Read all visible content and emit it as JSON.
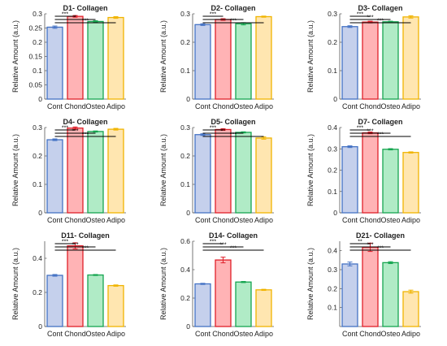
{
  "colors": {
    "stroke": [
      "#4472C4",
      "#E0202A",
      "#16A550",
      "#F0B400"
    ],
    "fill": [
      "#C5D0EC",
      "#FFB3B5",
      "#B0EBC6",
      "#FFE6B0"
    ],
    "axis": "#555555",
    "text": "#222222"
  },
  "chart_data": [
    {
      "type": "bar",
      "title": "D1- Collagen",
      "ylabel": "Relative Amount (a.u.)",
      "categories": [
        "Cont",
        "Chond",
        "Osteo",
        "Adipo"
      ],
      "values": [
        0.253,
        0.291,
        0.273,
        0.287
      ],
      "errors": [
        0.004,
        0.003,
        0.003,
        0.003
      ],
      "ylim": [
        0,
        0.3
      ],
      "yticks": [
        "0",
        "0.05",
        "0.1",
        "0.15",
        "0.2",
        "0.25",
        "0.3"
      ],
      "significance": [
        {
          "from": 0,
          "to": 1,
          "label": "***"
        },
        {
          "from": 0,
          "to": 2,
          "label": "*"
        },
        {
          "from": 0,
          "to": 3,
          "label": "***"
        }
      ]
    },
    {
      "type": "bar",
      "title": "D2- Collagen",
      "ylabel": "Relative Amount (a.u.)",
      "categories": [
        "Cont",
        "Chond",
        "Osteo",
        "Adipo"
      ],
      "values": [
        0.262,
        0.28,
        0.265,
        0.29
      ],
      "errors": [
        0.003,
        0.003,
        0.004,
        0.002
      ],
      "ylim": [
        0,
        0.3
      ],
      "yticks": [
        "0",
        "0.1",
        "0.2",
        "0.3"
      ],
      "significance": [
        {
          "from": 0,
          "to": 1,
          "label": "***"
        },
        {
          "from": 0,
          "to": 2,
          "label": ""
        },
        {
          "from": 0,
          "to": 3,
          "label": "***"
        }
      ]
    },
    {
      "type": "bar",
      "title": "D3- Collagen",
      "ylabel": "Relative Amount (a.u.)",
      "categories": [
        "Cont",
        "Chond",
        "Osteo",
        "Adipo"
      ],
      "values": [
        0.255,
        0.271,
        0.272,
        0.289
      ],
      "errors": [
        0.003,
        0.003,
        0.002,
        0.004
      ],
      "ylim": [
        0,
        0.3
      ],
      "yticks": [
        "0",
        "0.1",
        "0.2",
        "0.3"
      ],
      "significance": [
        {
          "from": 0,
          "to": 1,
          "label": "***"
        },
        {
          "from": 0,
          "to": 2,
          "label": "***"
        },
        {
          "from": 0,
          "to": 3,
          "label": "***"
        }
      ]
    },
    {
      "type": "bar",
      "title": "D4- Collagen",
      "ylabel": "Relative Amount (a.u.)",
      "categories": [
        "Cont",
        "Chond",
        "Osteo",
        "Adipo"
      ],
      "values": [
        0.257,
        0.298,
        0.286,
        0.294
      ],
      "errors": [
        0.003,
        0.004,
        0.002,
        0.003
      ],
      "ylim": [
        0,
        0.3
      ],
      "yticks": [
        "0",
        "0.1",
        "0.2",
        "0.3"
      ],
      "significance": [
        {
          "from": 0,
          "to": 1,
          "label": "***"
        },
        {
          "from": 0,
          "to": 2,
          "label": "***"
        },
        {
          "from": 0,
          "to": 3,
          "label": "***"
        }
      ]
    },
    {
      "type": "bar",
      "title": "D5- Collagen",
      "ylabel": "Relative Amount (a.u.)",
      "categories": [
        "Cont",
        "Chond",
        "Osteo",
        "Adipo"
      ],
      "values": [
        0.275,
        0.293,
        0.283,
        0.263
      ],
      "errors": [
        0.003,
        0.003,
        0.002,
        0.004
      ],
      "ylim": [
        0,
        0.3
      ],
      "yticks": [
        "0",
        "0.1",
        "0.2",
        "0.3"
      ],
      "significance": [
        {
          "from": 0,
          "to": 1,
          "label": "***"
        },
        {
          "from": 0,
          "to": 2,
          "label": "**"
        },
        {
          "from": 0,
          "to": 3,
          "label": "***"
        }
      ]
    },
    {
      "type": "bar",
      "title": "D7- Collagen",
      "ylabel": "Relative Amount (a.u.)",
      "categories": [
        "Cont",
        "Chond",
        "Osteo",
        "Adipo"
      ],
      "values": [
        0.31,
        0.375,
        0.298,
        0.283
      ],
      "errors": [
        0.004,
        0.004,
        0.003,
        0.003
      ],
      "ylim": [
        0,
        0.4
      ],
      "yticks": [
        "0",
        "0.1",
        "0.2",
        "0.3",
        "0.4"
      ],
      "significance": [
        {
          "from": 0,
          "to": 1,
          "label": "***"
        },
        {
          "from": 0,
          "to": 2,
          "label": "***"
        },
        {
          "from": 0,
          "to": 3,
          "label": "***"
        }
      ]
    },
    {
      "type": "bar",
      "title": "D11- Collagen",
      "ylabel": "Relative Amount (a.u.)",
      "categories": [
        "Cont",
        "Chond",
        "Osteo",
        "Adipo"
      ],
      "values": [
        0.3,
        0.473,
        0.302,
        0.24
      ],
      "errors": [
        0.005,
        0.018,
        0.003,
        0.004
      ],
      "ylim": [
        0,
        0.5
      ],
      "yticks": [
        "0",
        "0.2",
        "0.4"
      ],
      "significance": [
        {
          "from": 0,
          "to": 1,
          "label": "***"
        },
        {
          "from": 0,
          "to": 2,
          "label": "***"
        },
        {
          "from": 0,
          "to": 3,
          "label": "***"
        }
      ]
    },
    {
      "type": "bar",
      "title": "D14- Collagen",
      "ylabel": "Relative Amount (a.u.)",
      "categories": [
        "Cont",
        "Chond",
        "Osteo",
        "Adipo"
      ],
      "values": [
        0.3,
        0.468,
        0.313,
        0.258
      ],
      "errors": [
        0.004,
        0.02,
        0.004,
        0.004
      ],
      "ylim": [
        0,
        0.6
      ],
      "yticks": [
        "0",
        "0.2",
        "0.4",
        "0.6"
      ],
      "significance": [
        {
          "from": 0,
          "to": 1,
          "label": "***"
        },
        {
          "from": 0,
          "to": 2,
          "label": "***"
        },
        {
          "from": 0,
          "to": 3,
          "label": "***"
        }
      ]
    },
    {
      "type": "bar",
      "title": "D21- Collagen",
      "ylabel": "Relative Amount (a.u.)",
      "categories": [
        "Cont",
        "Chond",
        "Osteo",
        "Adipo"
      ],
      "values": [
        0.33,
        0.418,
        0.337,
        0.184
      ],
      "errors": [
        0.01,
        0.022,
        0.005,
        0.008
      ],
      "ylim": [
        0,
        0.45
      ],
      "yticks": [
        "0.1",
        "0.2",
        "0.3",
        "0.4"
      ],
      "significance": [
        {
          "from": 0,
          "to": 1,
          "label": "**"
        },
        {
          "from": 0,
          "to": 2,
          "label": "***"
        },
        {
          "from": 0,
          "to": 3,
          "label": "***"
        }
      ]
    }
  ]
}
